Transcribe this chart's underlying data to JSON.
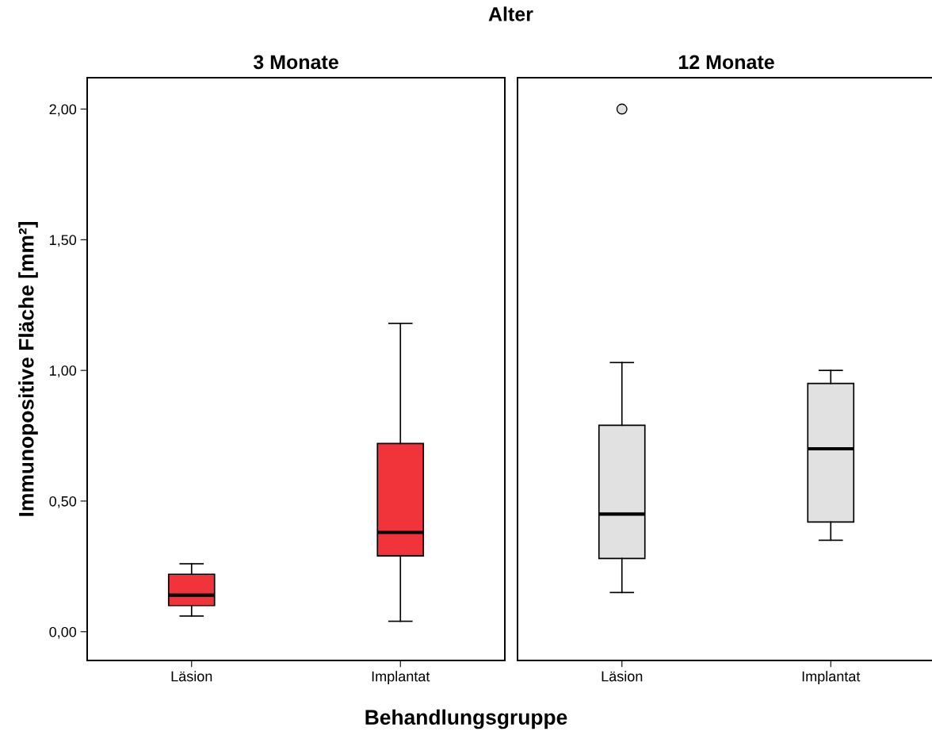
{
  "chart_data": [
    {
      "type": "box",
      "title": "3 Monate",
      "ylabel": "Immunopositive Fläche [mm²]",
      "xlabel": "Behandlungsgruppe",
      "annotations": [
        "Alter"
      ],
      "categories": [
        "Läsion",
        "Implantat"
      ],
      "series": [
        {
          "color": "#f0343a",
          "boxes": [
            {
              "low": 0.06,
              "q1": 0.1,
              "median": 0.14,
              "q3": 0.22,
              "high": 0.26
            },
            {
              "low": 0.04,
              "q1": 0.29,
              "median": 0.38,
              "q3": 0.72,
              "high": 1.18
            }
          ]
        }
      ],
      "ylim": [
        -0.11,
        2.12
      ],
      "yticks": [
        {
          "value": 0,
          "label": "0,00"
        },
        {
          "value": 0.5,
          "label": "0,50"
        },
        {
          "value": 1,
          "label": "1,00"
        },
        {
          "value": 1.5,
          "label": "1,50"
        },
        {
          "value": 2,
          "label": "2,00"
        }
      ]
    },
    {
      "type": "box",
      "title": "12 Monate",
      "tick_labels": "x",
      "categories": [
        "Läsion",
        "Implantat"
      ],
      "series": [
        {
          "color": "#e1e1e1",
          "boxes": [
            {
              "low": 0.15,
              "q1": 0.28,
              "median": 0.45,
              "q3": 0.79,
              "high": 1.03,
              "outliers": [
                2.0
              ]
            },
            {
              "low": 0.35,
              "q1": 0.42,
              "median": 0.7,
              "q3": 0.95,
              "high": 1.0
            }
          ]
        }
      ],
      "ylim": [
        -0.11,
        2.12
      ]
    }
  ]
}
